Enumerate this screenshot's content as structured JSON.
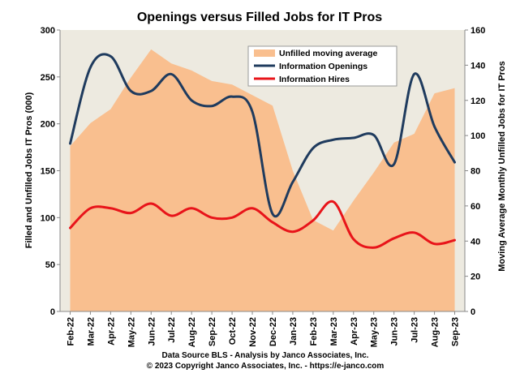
{
  "chart_data": {
    "type": "area",
    "title": "Openings versus Filled Jobs for IT Pros",
    "categories": [
      "Feb-22",
      "Mar-22",
      "Apr-22",
      "May-22",
      "Jun-22",
      "Jul-22",
      "Aug-22",
      "Sep-22",
      "Oct-22",
      "Nov-22",
      "Dec-22",
      "Jan-23",
      "Feb-23",
      "Mar-23",
      "Apr-23",
      "May-23",
      "Jun-23",
      "Jul-23",
      "Aug-23",
      "Sep-23"
    ],
    "ylabel": "Filled and Unfilled Jobs IT Pros (000)",
    "y2label": "Moving Average Monthly Unfilled Jobs for IT Pros",
    "ylim": [
      0,
      300
    ],
    "y_ticks": [
      "0",
      "50",
      "100",
      "150",
      "200",
      "250",
      "300"
    ],
    "y2lim": [
      0,
      160
    ],
    "y2_ticks": [
      "0",
      "20",
      "40",
      "60",
      "80",
      "100",
      "120",
      "140",
      "160"
    ],
    "grid": false,
    "legend_position": "top-right",
    "series": [
      {
        "name": "Unfilled moving average",
        "type": "area",
        "axis": "right",
        "color": "#F9BF8F",
        "values": [
          94,
          107,
          115,
          133,
          149,
          141,
          137,
          131,
          129,
          123,
          117,
          80,
          52,
          46,
          63,
          79,
          96,
          101,
          124,
          127
        ]
      },
      {
        "name": "Information Openings",
        "type": "line",
        "axis": "left",
        "color": "#1F3B5E",
        "values": [
          179,
          260,
          272,
          235,
          235,
          253,
          225,
          219,
          229,
          213,
          104,
          138,
          174,
          183,
          185,
          188,
          157,
          253,
          197,
          159
        ]
      },
      {
        "name": "Information Hires",
        "type": "line",
        "axis": "left",
        "color": "#E8141A",
        "values": [
          89,
          110,
          110,
          105,
          115,
          102,
          110,
          100,
          100,
          110,
          95,
          85,
          97,
          117,
          77,
          68,
          78,
          84,
          72,
          76
        ]
      }
    ]
  },
  "footer": {
    "source": "Data Source BLS - Analysis by Janco Associates, Inc.",
    "copyright": "© 2023 Copyright Janco Associates, Inc. - https://e-janco.com"
  }
}
